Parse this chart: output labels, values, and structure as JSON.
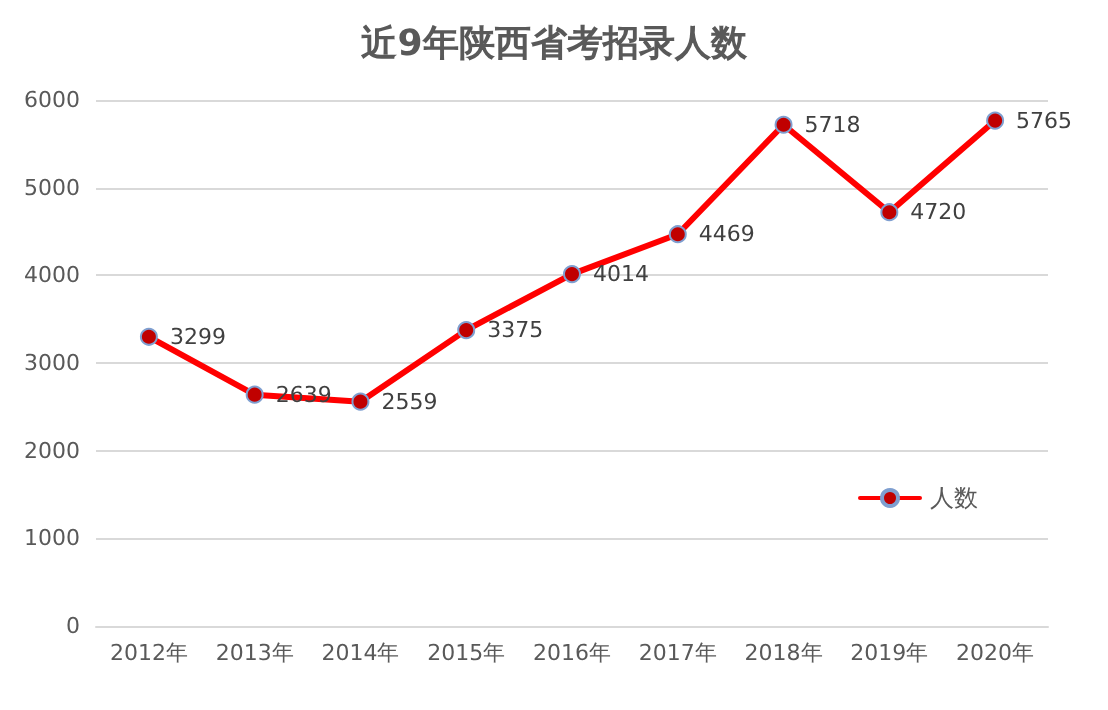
{
  "chart_data": {
    "type": "line",
    "title": "近9年陕西省考招录人数",
    "categories": [
      "2012年",
      "2013年",
      "2014年",
      "2015年",
      "2016年",
      "2017年",
      "2018年",
      "2019年",
      "2020年"
    ],
    "series": [
      {
        "name": "人数",
        "color": "#ff0000",
        "values": [
          3299,
          2639,
          2559,
          3375,
          4014,
          4469,
          5718,
          4720,
          5765
        ]
      }
    ],
    "ylim": [
      0,
      6000
    ],
    "yticks": [
      0,
      1000,
      2000,
      3000,
      4000,
      5000,
      6000
    ],
    "grid": "y",
    "legend": "bottom right",
    "marker": "circle",
    "data_labels": true
  }
}
